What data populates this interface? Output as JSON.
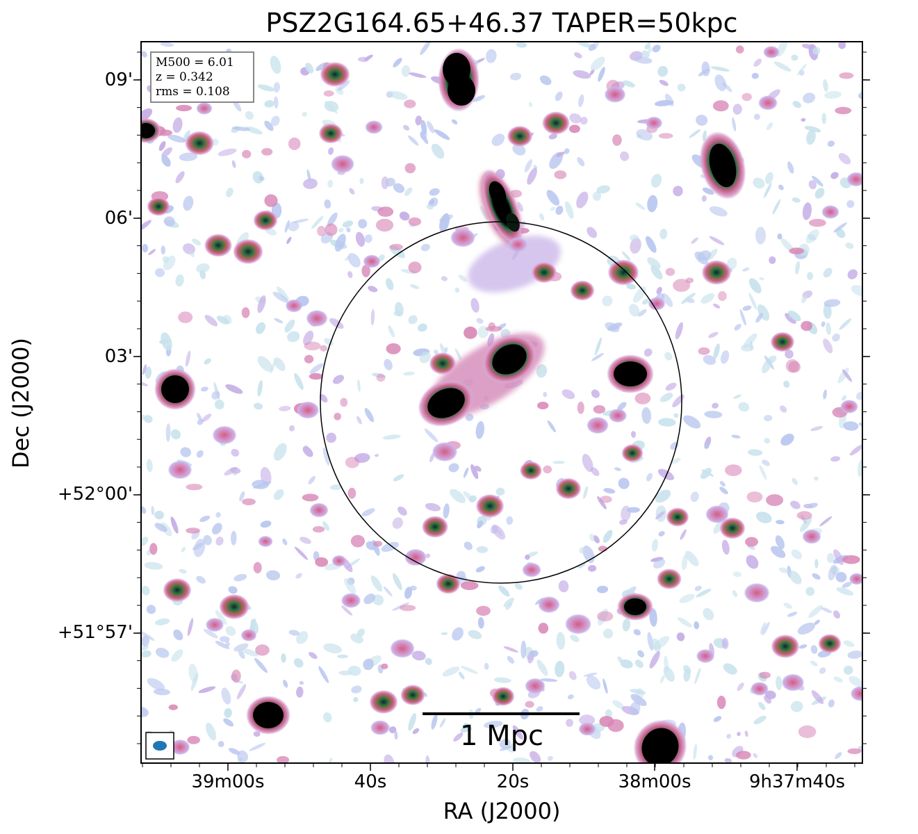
{
  "title": "PSZ2G164.65+46.37 TAPER=50kpc",
  "x_axis_title": "RA (J2000)",
  "y_axis_title": "Dec (J2000)",
  "x_ticks": [
    {
      "label": "39m00s"
    },
    {
      "label": "40s"
    },
    {
      "label": "20s"
    },
    {
      "label": "38m00s"
    },
    {
      "label": "9h37m40s"
    }
  ],
  "y_ticks": [
    {
      "label": "09'"
    },
    {
      "label": "06'"
    },
    {
      "label": "03'"
    },
    {
      "label": "+52°00'"
    },
    {
      "label": "+51°57'"
    }
  ],
  "info": {
    "m500": "M500 = 6.01",
    "z": "z = 0.342",
    "rms": "rms = 0.108"
  },
  "scale_bar_label": "1 Mpc",
  "colors": {
    "noise_light": "#c8e2ec",
    "noise_blue": "#b9c7ef",
    "lavender": "#c5aee6",
    "pink": "#d885b5",
    "rose": "#c9608a",
    "green": "#2f6e4a",
    "core": "#000000",
    "beam": "#1f77b4"
  }
}
